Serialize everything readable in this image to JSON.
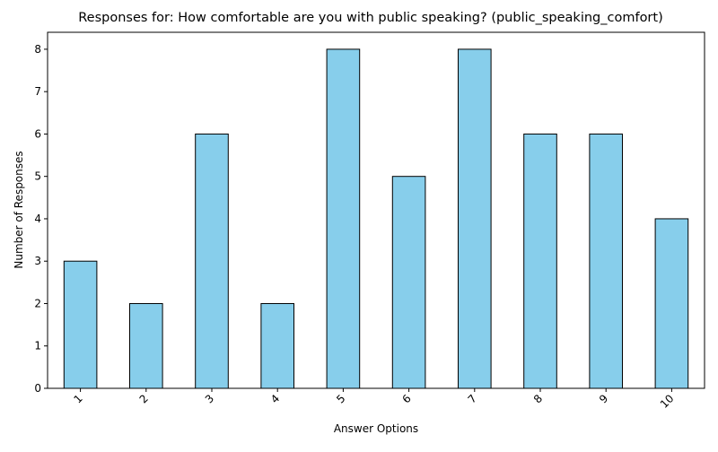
{
  "chart_data": {
    "type": "bar",
    "title": "Responses for: How comfortable are you with public speaking? (public_speaking_comfort)",
    "xlabel": "Answer Options",
    "ylabel": "Number of Responses",
    "categories": [
      "1",
      "2",
      "3",
      "4",
      "5",
      "6",
      "7",
      "8",
      "9",
      "10"
    ],
    "values": [
      3,
      2,
      6,
      2,
      8,
      5,
      8,
      6,
      6,
      4
    ],
    "ylim": [
      0,
      8.4
    ],
    "yticks": [
      "0",
      "1",
      "2",
      "3",
      "4",
      "5",
      "6",
      "7",
      "8"
    ],
    "x_tick_rotation_deg": 45,
    "grid": false,
    "legend": "none",
    "bar_color": "#87ceeb",
    "bar_edge_color": "#000000"
  }
}
